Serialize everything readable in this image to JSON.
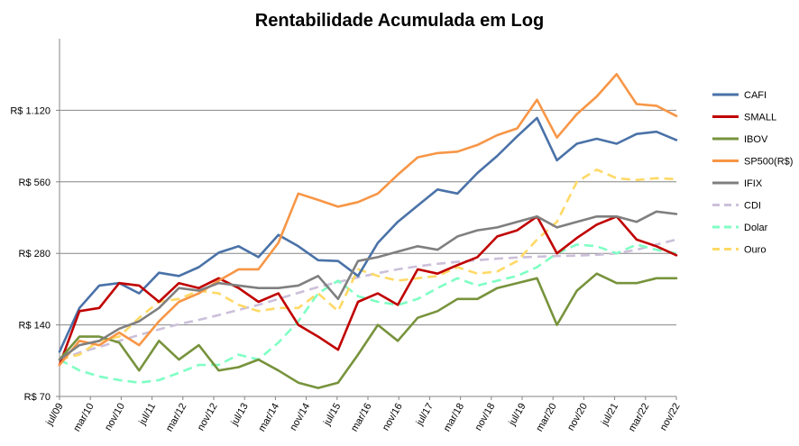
{
  "chart_data": {
    "type": "line",
    "title": "Rentabilidade Acumulada em Log",
    "xlabel": "",
    "ylabel": "",
    "y_scale": "log2",
    "ylim": [
      70,
      2240
    ],
    "grid": "horizontal",
    "legend_position": "right",
    "y_ticks": [
      {
        "value": 70,
        "label": "R$ 70"
      },
      {
        "value": 140,
        "label": "R$ 140"
      },
      {
        "value": 280,
        "label": "R$ 280"
      },
      {
        "value": 560,
        "label": "R$ 560"
      },
      {
        "value": 1120,
        "label": "R$ 1.120"
      }
    ],
    "x_ticks": [
      "jul/09",
      "mar/10",
      "nov/10",
      "jul/11",
      "mar/12",
      "nov/12",
      "jul/13",
      "mar/14",
      "nov/14",
      "jul/15",
      "mar/16",
      "nov/16",
      "jul/17",
      "mar/18",
      "nov/18",
      "jul/19",
      "mar/20",
      "nov/20",
      "jul/21",
      "mar/22",
      "nov/22"
    ],
    "series": [
      {
        "name": "CAFI",
        "color": "#4a72a8",
        "style": "solid",
        "values": [
          108,
          165,
          205,
          210,
          190,
          232,
          225,
          245,
          282,
          300,
          270,
          335,
          300,
          262,
          260,
          225,
          310,
          380,
          445,
          520,
          500,
          610,
          720,
          870,
          1040,
          690,
          810,
          850,
          810,
          890,
          910,
          840
        ]
      },
      {
        "name": "SMALL",
        "color": "#c00000",
        "style": "solid",
        "values": [
          95,
          160,
          165,
          210,
          205,
          175,
          210,
          200,
          220,
          200,
          175,
          190,
          140,
          125,
          110,
          175,
          190,
          170,
          240,
          230,
          250,
          270,
          330,
          350,
          400,
          280,
          325,
          370,
          400,
          320,
          300,
          275
        ]
      },
      {
        "name": "IBOV",
        "color": "#77933c",
        "style": "solid",
        "values": [
          100,
          125,
          125,
          118,
          90,
          120,
          100,
          115,
          90,
          93,
          100,
          90,
          80,
          76,
          80,
          105,
          140,
          120,
          150,
          160,
          180,
          180,
          200,
          210,
          220,
          140,
          195,
          230,
          210,
          210,
          220,
          220
        ]
      },
      {
        "name": "SP500(R$)",
        "color": "#f79646",
        "style": "solid",
        "values": [
          95,
          120,
          115,
          130,
          115,
          145,
          175,
          190,
          215,
          240,
          240,
          310,
          500,
          470,
          440,
          460,
          500,
          600,
          710,
          740,
          750,
          800,
          880,
          940,
          1240,
          860,
          1080,
          1280,
          1590,
          1190,
          1170,
          1060
        ]
      },
      {
        "name": "IFIX",
        "color": "#7f7f7f",
        "style": "solid",
        "values": [
          100,
          115,
          120,
          135,
          145,
          165,
          200,
          195,
          210,
          205,
          200,
          200,
          205,
          225,
          180,
          260,
          270,
          285,
          300,
          290,
          330,
          350,
          360,
          380,
          400,
          360,
          380,
          400,
          400,
          380,
          420,
          410
        ]
      },
      {
        "name": "CDI",
        "color": "#ccc0da",
        "style": "dashed",
        "values": [
          100,
          107,
          113,
          120,
          127,
          134,
          141,
          147,
          154,
          162,
          170,
          180,
          191,
          202,
          212,
          222,
          231,
          240,
          247,
          253,
          258,
          262,
          266,
          269,
          271,
          273,
          274,
          276,
          280,
          290,
          305,
          320
        ]
      },
      {
        "name": "Dolar",
        "color": "#7fffc4",
        "style": "dashed",
        "values": [
          100,
          90,
          85,
          82,
          80,
          82,
          88,
          95,
          95,
          105,
          100,
          118,
          145,
          190,
          215,
          185,
          175,
          170,
          180,
          200,
          220,
          205,
          215,
          225,
          245,
          280,
          305,
          300,
          280,
          305,
          290,
          280
        ]
      },
      {
        "name": "Ouro",
        "color": "#ffd966",
        "style": "dashed",
        "values": [
          100,
          105,
          120,
          125,
          150,
          175,
          180,
          195,
          190,
          170,
          160,
          165,
          165,
          190,
          160,
          240,
          225,
          215,
          220,
          225,
          245,
          230,
          235,
          260,
          320,
          380,
          560,
          630,
          580,
          570,
          580,
          575
        ]
      }
    ]
  }
}
